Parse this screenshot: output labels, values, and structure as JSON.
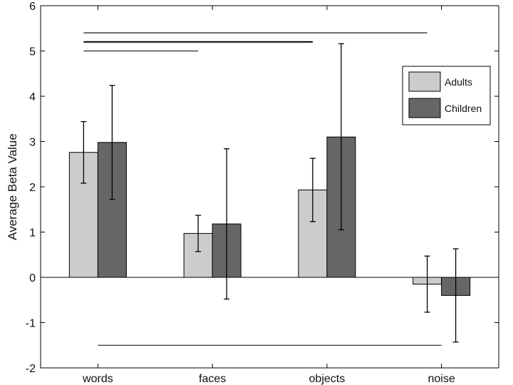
{
  "chart_data": {
    "type": "bar",
    "title": "",
    "xlabel": "",
    "ylabel": "Average Beta Value",
    "ylim": [
      -2,
      6
    ],
    "yticks": [
      -2,
      -1,
      0,
      1,
      2,
      3,
      4,
      5,
      6
    ],
    "categories": [
      "words",
      "faces",
      "objects",
      "noise"
    ],
    "series": [
      {
        "name": "Adults",
        "color": "#cccccc",
        "values": [
          2.76,
          0.97,
          1.93,
          -0.15
        ],
        "error_low": [
          2.08,
          0.57,
          1.23,
          -0.77
        ],
        "error_high": [
          3.44,
          1.37,
          2.63,
          0.47
        ]
      },
      {
        "name": "Children",
        "color": "#666666",
        "values": [
          2.98,
          1.18,
          3.1,
          -0.4
        ],
        "error_low": [
          1.72,
          -0.48,
          1.05,
          -1.43
        ],
        "error_high": [
          4.24,
          2.84,
          5.16,
          0.63
        ]
      }
    ],
    "significance_lines": [
      {
        "from": "words",
        "to": "noise",
        "y": 5.4
      },
      {
        "from": "words",
        "to": "objects",
        "y": 5.2
      },
      {
        "from": "words",
        "to": "faces",
        "y": 5.0
      },
      {
        "from": "words",
        "to": "noise",
        "y": -1.5
      }
    ],
    "legend_position": "top-right",
    "grid": false
  }
}
